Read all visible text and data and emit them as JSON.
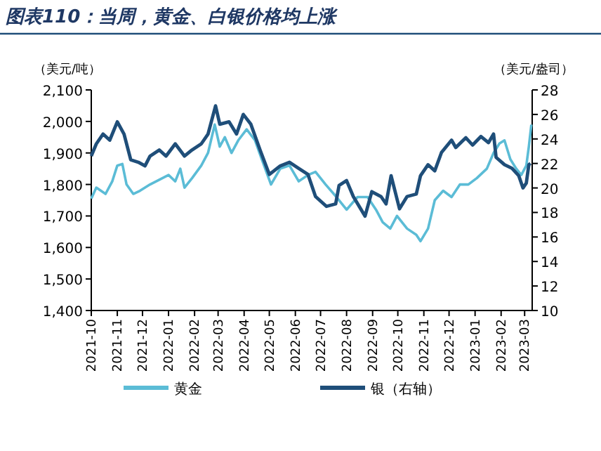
{
  "chart_data": {
    "type": "line",
    "title": "图表110：当周，黄金、白银价格均上涨",
    "ylabel": "（美元/吨）",
    "y2label": "（美元/盎司）",
    "xlim": [
      "2021-10-01",
      "2023-03-10"
    ],
    "xticks": [
      "2021-10",
      "2021-11",
      "2021-12",
      "2022-01",
      "2022-02",
      "2022-03",
      "2022-04",
      "2022-05",
      "2022-06",
      "2022-07",
      "2022-08",
      "2022-09",
      "2022-10",
      "2022-11",
      "2022-12",
      "2023-01",
      "2023-02",
      "2023-03"
    ],
    "ylim": [
      1400,
      2100
    ],
    "yticks": [
      {
        "value": 1400,
        "label": "1,400"
      },
      {
        "value": 1500,
        "label": "1,500"
      },
      {
        "value": 1600,
        "label": "1,600"
      },
      {
        "value": 1700,
        "label": "1,700"
      },
      {
        "value": 1800,
        "label": "1,800"
      },
      {
        "value": 1900,
        "label": "1,900"
      },
      {
        "value": 2000,
        "label": "2,000"
      },
      {
        "value": 2100,
        "label": "2,100"
      }
    ],
    "y2lim": [
      10,
      28
    ],
    "y2ticks": [
      10,
      12,
      14,
      16,
      18,
      20,
      22,
      24,
      26,
      28
    ],
    "grid": false,
    "legend": "bottom",
    "marker": "none",
    "line_style": "solid",
    "series": [
      {
        "name": "黄金",
        "color": "#5bbcd6",
        "x": [
          "2021-10-01",
          "2021-10-07",
          "2021-10-18",
          "2021-10-26",
          "2021-11-01",
          "2021-11-07",
          "2021-11-12",
          "2021-11-20",
          "2021-11-28",
          "2021-12-10",
          "2021-12-21",
          "2022-01-01",
          "2022-01-09",
          "2022-01-15",
          "2022-01-20",
          "2022-01-29",
          "2022-02-09",
          "2022-02-17",
          "2022-02-25",
          "2022-03-03",
          "2022-03-09",
          "2022-03-17",
          "2022-03-25",
          "2022-04-04",
          "2022-04-14",
          "2022-04-22",
          "2022-05-03",
          "2022-05-14",
          "2022-05-25",
          "2022-06-05",
          "2022-06-16",
          "2022-06-25",
          "2022-07-07",
          "2022-07-20",
          "2022-08-01",
          "2022-08-14",
          "2022-08-26",
          "2022-09-05",
          "2022-09-13",
          "2022-09-22",
          "2022-09-30",
          "2022-10-12",
          "2022-10-23",
          "2022-10-28",
          "2022-11-06",
          "2022-11-14",
          "2022-11-24",
          "2022-12-04",
          "2022-12-14",
          "2022-12-24",
          "2023-01-03",
          "2023-01-15",
          "2023-01-23",
          "2023-01-30",
          "2023-02-05",
          "2023-02-12",
          "2023-02-19",
          "2023-02-25",
          "2023-03-03",
          "2023-03-06",
          "2023-03-09"
        ],
        "values": [
          1755,
          1790,
          1770,
          1810,
          1860,
          1865,
          1800,
          1770,
          1780,
          1800,
          1815,
          1830,
          1810,
          1850,
          1790,
          1820,
          1860,
          1900,
          1990,
          1920,
          1950,
          1900,
          1940,
          1975,
          1940,
          1880,
          1800,
          1850,
          1860,
          1810,
          1830,
          1840,
          1800,
          1760,
          1720,
          1760,
          1760,
          1720,
          1680,
          1660,
          1700,
          1660,
          1640,
          1620,
          1660,
          1750,
          1780,
          1760,
          1800,
          1800,
          1820,
          1850,
          1900,
          1930,
          1940,
          1880,
          1850,
          1830,
          1860,
          1920,
          1990
        ]
      },
      {
        "name": "银（右轴）",
        "color": "#1f4e79",
        "axis": "y2",
        "x": [
          "2021-10-01",
          "2021-10-07",
          "2021-10-15",
          "2021-10-23",
          "2021-11-01",
          "2021-11-09",
          "2021-11-17",
          "2021-11-26",
          "2021-12-04",
          "2021-12-10",
          "2021-12-21",
          "2021-12-29",
          "2022-01-09",
          "2022-01-20",
          "2022-01-29",
          "2022-02-09",
          "2022-02-17",
          "2022-02-26",
          "2022-03-03",
          "2022-03-14",
          "2022-03-23",
          "2022-03-31",
          "2022-04-09",
          "2022-04-20",
          "2022-05-01",
          "2022-05-14",
          "2022-05-25",
          "2022-06-05",
          "2022-06-16",
          "2022-06-25",
          "2022-07-08",
          "2022-07-19",
          "2022-07-23",
          "2022-08-01",
          "2022-08-09",
          "2022-08-23",
          "2022-08-31",
          "2022-09-11",
          "2022-09-17",
          "2022-09-23",
          "2022-10-03",
          "2022-10-12",
          "2022-10-23",
          "2022-10-28",
          "2022-11-06",
          "2022-11-14",
          "2022-11-22",
          "2022-12-04",
          "2022-12-09",
          "2022-12-21",
          "2022-12-29",
          "2023-01-08",
          "2023-01-17",
          "2023-01-23",
          "2023-01-26",
          "2023-02-05",
          "2023-02-14",
          "2023-02-22",
          "2023-02-27",
          "2023-03-03",
          "2023-03-06",
          "2023-03-08"
        ],
        "values": [
          22.6,
          23.6,
          24.4,
          23.9,
          25.4,
          24.4,
          22.3,
          22.1,
          21.8,
          22.6,
          23.1,
          22.6,
          23.6,
          22.6,
          23.1,
          23.6,
          24.4,
          26.7,
          25.2,
          25.4,
          24.4,
          26.0,
          25.2,
          23.1,
          21.1,
          21.8,
          22.1,
          21.6,
          21.1,
          19.3,
          18.5,
          18.7,
          20.2,
          20.6,
          19.3,
          17.7,
          19.7,
          19.3,
          18.7,
          21.0,
          18.3,
          19.3,
          19.5,
          21.0,
          21.9,
          21.4,
          22.9,
          23.9,
          23.3,
          24.1,
          23.5,
          24.2,
          23.7,
          24.4,
          22.5,
          21.9,
          21.6,
          21.0,
          20.0,
          20.4,
          21.9,
          22.0
        ]
      }
    ]
  }
}
